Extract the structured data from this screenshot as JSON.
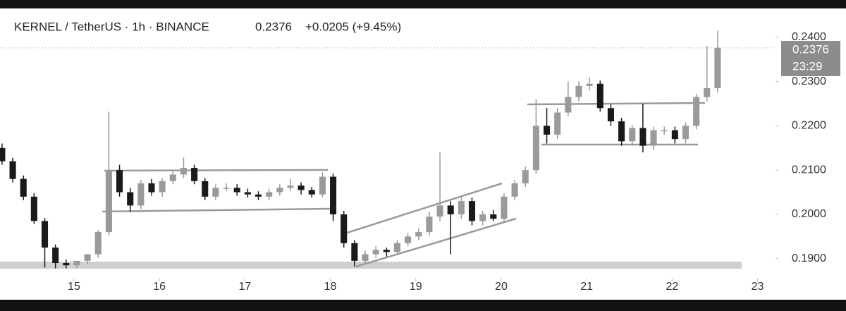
{
  "chart_data": {
    "type": "candlestick",
    "title": "KERNEL / TetherUS · 1h · BINANCE",
    "last_price": 0.2376,
    "change": "+0.0205 (+9.45%)",
    "countdown": "23:29",
    "up_color": "#9a9a9a",
    "down_color": "#1a1a1a",
    "x": [
      14.158,
      14.283,
      14.408,
      14.533,
      14.658,
      14.783,
      14.908,
      15.033,
      15.158,
      15.283,
      15.408,
      15.533,
      15.658,
      15.783,
      15.908,
      16.033,
      16.158,
      16.283,
      16.408,
      16.533,
      16.658,
      16.783,
      16.908,
      17.033,
      17.158,
      17.283,
      17.408,
      17.533,
      17.658,
      17.783,
      17.908,
      18.033,
      18.158,
      18.283,
      18.408,
      18.533,
      18.658,
      18.783,
      18.908,
      19.033,
      19.158,
      19.283,
      19.408,
      19.533,
      19.658,
      19.783,
      19.908,
      20.033,
      20.158,
      20.283,
      20.408,
      20.533,
      20.658,
      20.783,
      20.908,
      21.033,
      21.158,
      21.283,
      21.408,
      21.533,
      21.658,
      21.783,
      21.908,
      22.033,
      22.158,
      22.283,
      22.408,
      22.533
    ],
    "open": [
      0.215,
      0.212,
      0.208,
      0.204,
      0.1985,
      0.1925,
      0.189,
      0.1885,
      0.1895,
      0.191,
      0.196,
      0.21,
      0.205,
      0.202,
      0.207,
      0.205,
      0.2075,
      0.209,
      0.2105,
      0.2075,
      0.204,
      0.206,
      0.206,
      0.205,
      0.2045,
      0.204,
      0.205,
      0.206,
      0.2065,
      0.2055,
      0.2045,
      0.2085,
      0.2,
      0.1935,
      0.1895,
      0.191,
      0.192,
      0.1915,
      0.1935,
      0.195,
      0.196,
      0.1995,
      0.202,
      0.2,
      0.203,
      0.1985,
      0.2,
      0.199,
      0.204,
      0.207,
      0.21,
      0.22,
      0.218,
      0.223,
      0.2265,
      0.229,
      0.2295,
      0.224,
      0.221,
      0.2165,
      0.2195,
      0.2155,
      0.219,
      0.219,
      0.217,
      0.22,
      0.2265,
      0.2285
    ],
    "high": [
      0.216,
      0.2128,
      0.2088,
      0.2048,
      0.1992,
      0.1932,
      0.1898,
      0.1893,
      0.1905,
      0.1965,
      0.2232,
      0.2112,
      0.206,
      0.2078,
      0.208,
      0.2082,
      0.2098,
      0.2128,
      0.2112,
      0.2082,
      0.2068,
      0.207,
      0.2068,
      0.2058,
      0.2052,
      0.2058,
      0.2068,
      0.208,
      0.2072,
      0.2062,
      0.2095,
      0.2092,
      0.2008,
      0.1942,
      0.1918,
      0.1928,
      0.1925,
      0.1942,
      0.1958,
      0.1968,
      0.2005,
      0.214,
      0.203,
      0.204,
      0.2038,
      0.2008,
      0.201,
      0.2048,
      0.2078,
      0.2108,
      0.226,
      0.224,
      0.224,
      0.23,
      0.23,
      0.231,
      0.2302,
      0.2248,
      0.2218,
      0.2202,
      0.225,
      0.2198,
      0.2198,
      0.2198,
      0.2208,
      0.2272,
      0.238,
      0.2415
    ],
    "low": [
      0.2112,
      0.2072,
      0.2032,
      0.1978,
      0.188,
      0.1878,
      0.1878,
      0.1878,
      0.1888,
      0.1902,
      0.1952,
      0.204,
      0.2005,
      0.2012,
      0.2042,
      0.204,
      0.2068,
      0.2082,
      0.2068,
      0.2032,
      0.2032,
      0.2052,
      0.2042,
      0.2038,
      0.2032,
      0.2032,
      0.2042,
      0.2052,
      0.2045,
      0.2038,
      0.2038,
      0.1985,
      0.1925,
      0.1882,
      0.1888,
      0.1902,
      0.1905,
      0.1908,
      0.1928,
      0.1942,
      0.1952,
      0.1985,
      0.191,
      0.199,
      0.1975,
      0.1975,
      0.1985,
      0.1982,
      0.2032,
      0.2062,
      0.2092,
      0.216,
      0.217,
      0.2222,
      0.2255,
      0.228,
      0.2232,
      0.22,
      0.2155,
      0.2155,
      0.214,
      0.2145,
      0.218,
      0.216,
      0.216,
      0.2192,
      0.2255,
      0.2275
    ],
    "close": [
      0.212,
      0.208,
      0.204,
      0.1985,
      0.1925,
      0.189,
      0.1885,
      0.1895,
      0.191,
      0.196,
      0.21,
      0.205,
      0.202,
      0.207,
      0.205,
      0.2075,
      0.209,
      0.2105,
      0.2075,
      0.204,
      0.206,
      0.206,
      0.205,
      0.2045,
      0.204,
      0.205,
      0.206,
      0.2065,
      0.2055,
      0.2045,
      0.2085,
      0.2,
      0.1935,
      0.1895,
      0.191,
      0.192,
      0.1915,
      0.1935,
      0.195,
      0.196,
      0.1995,
      0.202,
      0.2,
      0.203,
      0.1985,
      0.2,
      0.199,
      0.204,
      0.207,
      0.21,
      0.22,
      0.218,
      0.223,
      0.2265,
      0.229,
      0.2295,
      0.224,
      0.221,
      0.2165,
      0.2195,
      0.2155,
      0.219,
      0.219,
      0.217,
      0.22,
      0.2265,
      0.2285,
      0.2376
    ],
    "xlim": [
      14.134,
      23.21
    ],
    "ylim": [
      0.1855,
      0.2465
    ],
    "xticks": [
      15,
      16,
      17,
      18,
      19,
      20,
      21,
      22,
      23
    ],
    "yticks": [
      {
        "value": 0.19,
        "label": "0.1900"
      },
      {
        "value": 0.2,
        "label": "0.2000"
      },
      {
        "value": 0.21,
        "label": "0.2100"
      },
      {
        "value": 0.22,
        "label": "0.2200"
      },
      {
        "value": 0.23,
        "label": "0.2300"
      },
      {
        "value": 0.24,
        "label": "0.2400"
      }
    ]
  }
}
